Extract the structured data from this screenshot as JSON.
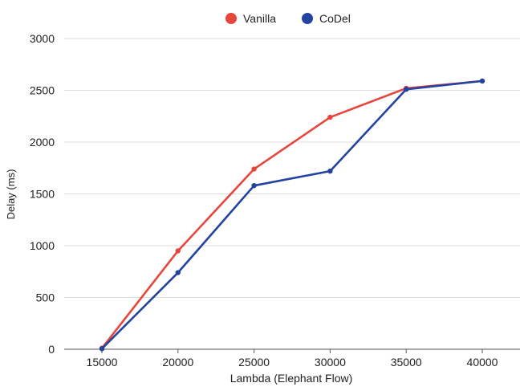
{
  "chart_data": {
    "type": "line",
    "title": "",
    "xlabel": "Lambda (Elephant Flow)",
    "ylabel": "Delay (ms)",
    "x": [
      15000,
      20000,
      25000,
      30000,
      35000,
      40000
    ],
    "x_tick_labels": [
      "15000",
      "20000",
      "25000",
      "30000",
      "35000",
      "40000"
    ],
    "y_ticks": [
      0,
      500,
      1000,
      1500,
      2000,
      2500,
      3000
    ],
    "y_tick_labels": [
      "0",
      "500",
      "1000",
      "1500",
      "2000",
      "2500",
      "3000"
    ],
    "ylim": [
      0,
      3000
    ],
    "grid": true,
    "legend_position": "top-center",
    "series": [
      {
        "name": "Vanilla",
        "color": "#e8453c",
        "values": [
          10,
          950,
          1740,
          2240,
          2520,
          2590
        ]
      },
      {
        "name": "CoDel",
        "color": "#2244a0",
        "values": [
          5,
          740,
          1580,
          1720,
          2510,
          2590
        ]
      }
    ]
  }
}
